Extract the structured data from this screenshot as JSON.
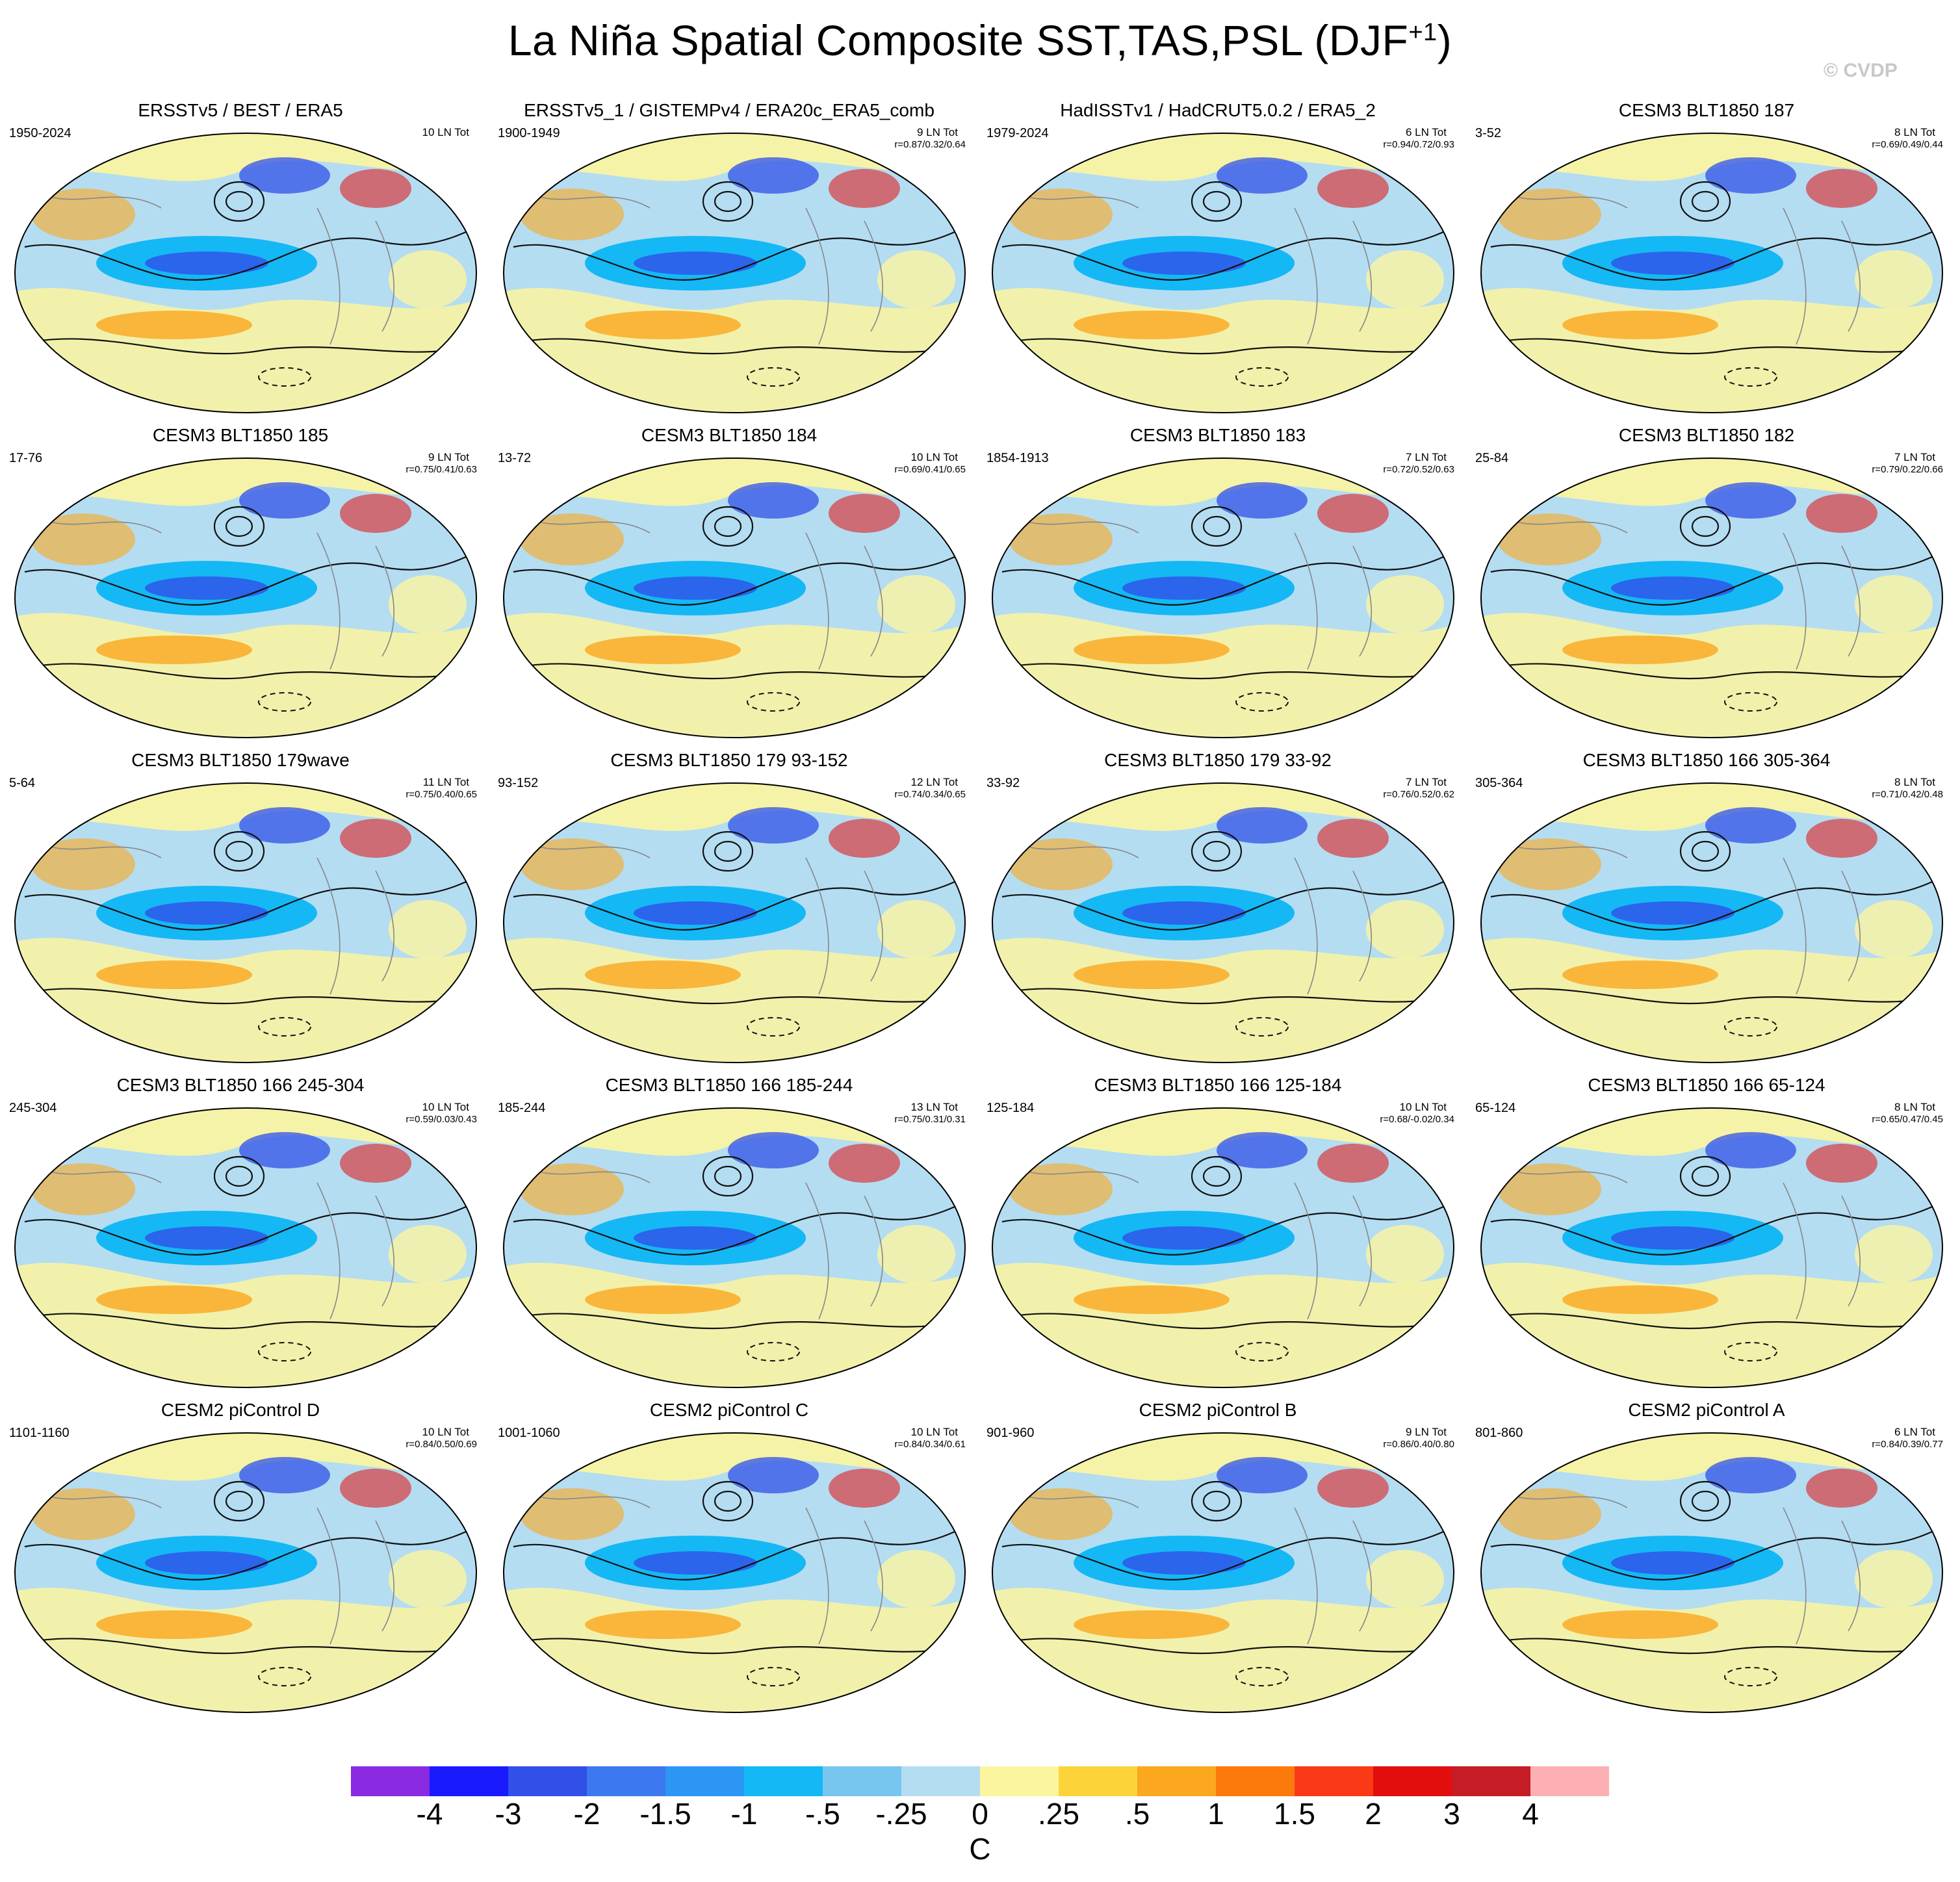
{
  "title": {
    "main": "La Niña Spatial Composite SST,TAS,PSL (DJF",
    "sup": "+1",
    "close": ")"
  },
  "copyright": "© CVDP",
  "panels": [
    {
      "title": "ERSSTv5 / BEST / ERA5",
      "years": "1950-2024",
      "count": "10 LN Tot",
      "corr": ""
    },
    {
      "title": "ERSSTv5_1 / GISTEMPv4 / ERA20c_ERA5_comb",
      "years": "1900-1949",
      "count": "9 LN Tot",
      "corr": "r=0.87/0.32/0.64"
    },
    {
      "title": "HadISSTv1 / HadCRUT5.0.2 / ERA5_2",
      "years": "1979-2024",
      "count": "6 LN Tot",
      "corr": "r=0.94/0.72/0.93"
    },
    {
      "title": "CESM3 BLT1850 187",
      "years": "3-52",
      "count": "8 LN Tot",
      "corr": "r=0.69/0.49/0.44"
    },
    {
      "title": "CESM3 BLT1850 185",
      "years": "17-76",
      "count": "9 LN Tot",
      "corr": "r=0.75/0.41/0.63"
    },
    {
      "title": "CESM3 BLT1850 184",
      "years": "13-72",
      "count": "10 LN Tot",
      "corr": "r=0.69/0.41/0.65"
    },
    {
      "title": "CESM3 BLT1850 183",
      "years": "1854-1913",
      "count": "7 LN Tot",
      "corr": "r=0.72/0.52/0.63"
    },
    {
      "title": "CESM3 BLT1850 182",
      "years": "25-84",
      "count": "7 LN Tot",
      "corr": "r=0.79/0.22/0.66"
    },
    {
      "title": "CESM3 BLT1850 179wave",
      "years": "5-64",
      "count": "11 LN Tot",
      "corr": "r=0.75/0.40/0.65"
    },
    {
      "title": "CESM3 BLT1850 179 93-152",
      "years": "93-152",
      "count": "12 LN Tot",
      "corr": "r=0.74/0.34/0.65"
    },
    {
      "title": "CESM3 BLT1850 179 33-92",
      "years": "33-92",
      "count": "7 LN Tot",
      "corr": "r=0.76/0.52/0.62"
    },
    {
      "title": "CESM3 BLT1850 166 305-364",
      "years": "305-364",
      "count": "8 LN Tot",
      "corr": "r=0.71/0.42/0.48"
    },
    {
      "title": "CESM3 BLT1850 166 245-304",
      "years": "245-304",
      "count": "10 LN Tot",
      "corr": "r=0.59/0.03/0.43"
    },
    {
      "title": "CESM3 BLT1850 166 185-244",
      "years": "185-244",
      "count": "13 LN Tot",
      "corr": "r=0.75/0.31/0.31"
    },
    {
      "title": "CESM3 BLT1850 166 125-184",
      "years": "125-184",
      "count": "10 LN Tot",
      "corr": "r=0.68/-0.02/0.34"
    },
    {
      "title": "CESM3 BLT1850 166 65-124",
      "years": "65-124",
      "count": "8 LN Tot",
      "corr": "r=0.65/0.47/0.45"
    },
    {
      "title": "CESM2 piControl D",
      "years": "1101-1160",
      "count": "10 LN Tot",
      "corr": "r=0.84/0.50/0.69"
    },
    {
      "title": "CESM2 piControl C",
      "years": "1001-1060",
      "count": "10 LN Tot",
      "corr": "r=0.84/0.34/0.61"
    },
    {
      "title": "CESM2 piControl B",
      "years": "901-960",
      "count": "9 LN Tot",
      "corr": "r=0.86/0.40/0.80"
    },
    {
      "title": "CESM2 piControl A",
      "years": "801-860",
      "count": "6 LN Tot",
      "corr": "r=0.84/0.39/0.77"
    }
  ],
  "colorbar": {
    "colors": [
      "#8a2be2",
      "#1a1aff",
      "#3050e8",
      "#3c78f0",
      "#2c96f5",
      "#14b8f5",
      "#78c6f0",
      "#b4ddf2",
      "#fcf5a0",
      "#fcd43a",
      "#fca81e",
      "#fc7a0c",
      "#fa3a16",
      "#e20e0e",
      "#c61c26",
      "#fcb0b4"
    ],
    "labels": [
      "-4",
      "-3",
      "-2",
      "-1.5",
      "-1",
      "-.5",
      "-.25",
      "0",
      ".25",
      ".5",
      "1",
      "1.5",
      "2",
      "3",
      "4"
    ],
    "units": "C"
  },
  "map_colors": {
    "ocean_cool": "#b4ddf2",
    "cold": "#14b8f5",
    "colder": "#3050e8",
    "warm": "#fcf5a0",
    "warmer": "#fca81e",
    "hot": "#e20e0e"
  }
}
